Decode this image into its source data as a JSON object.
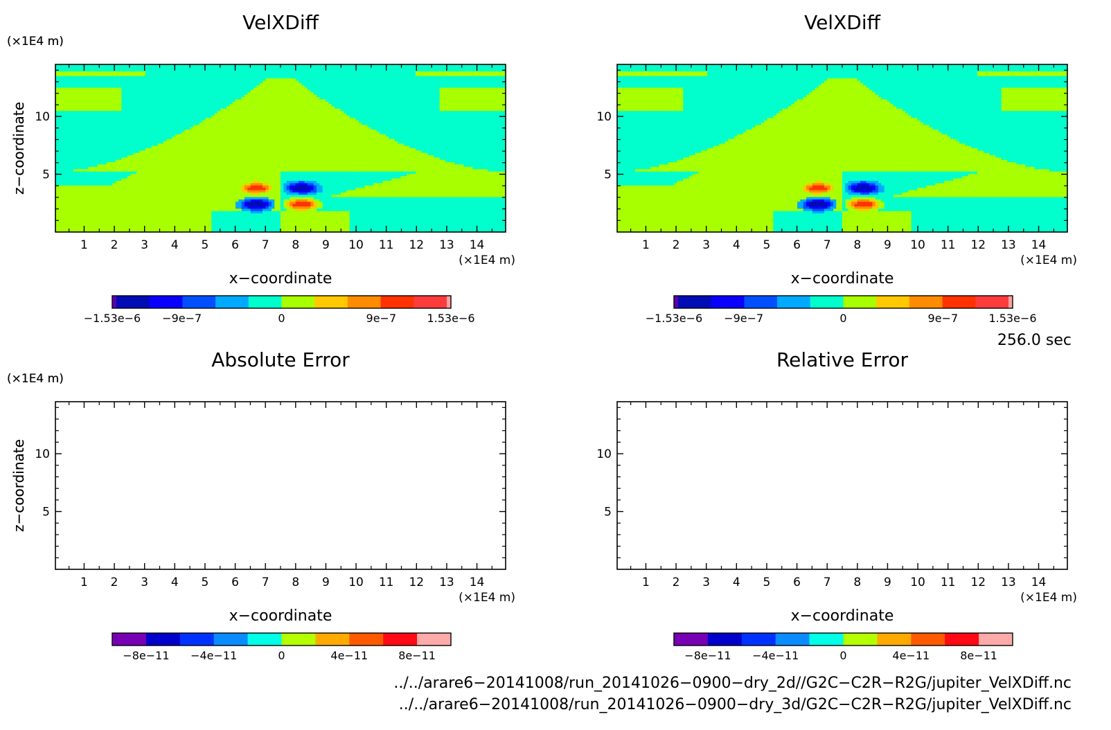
{
  "chart_data": [
    {
      "type": "heatmap",
      "title": "VelXDiff",
      "xlabel": "x−coordinate",
      "ylabel": "z−coordinate",
      "x_unit": "(×1E4 m)",
      "y_unit": "(×1E4 m)",
      "xlim": [
        0.05,
        14.95
      ],
      "ylim": [
        0,
        14.5
      ],
      "x_ticks": [
        "1",
        "2",
        "3",
        "4",
        "5",
        "6",
        "7",
        "8",
        "9",
        "10",
        "11",
        "12",
        "13",
        "14"
      ],
      "y_ticks": [
        "5",
        "10"
      ],
      "colorbar_labels": [
        "−1.53e−6",
        "−9e−7",
        "0",
        "9e−7",
        "1.53e−6"
      ],
      "colorbar_range": [
        -1.53e-06,
        1.53e-06
      ],
      "field": "velxdiff",
      "features": [
        {
          "x": 6.7,
          "z": 3.8,
          "sign": "positive"
        },
        {
          "x": 8.2,
          "z": 3.8,
          "sign": "negative"
        },
        {
          "x": 6.7,
          "z": 2.4,
          "sign": "negative"
        },
        {
          "x": 8.2,
          "z": 2.4,
          "sign": "positive"
        }
      ]
    },
    {
      "type": "heatmap",
      "title": "VelXDiff",
      "xlabel": "x−coordinate",
      "ylabel": "z−coordinate",
      "x_unit": "(×1E4 m)",
      "y_unit": "(×1E4 m)",
      "xlim": [
        0.05,
        14.95
      ],
      "ylim": [
        0,
        14.5
      ],
      "x_ticks": [
        "1",
        "2",
        "3",
        "4",
        "5",
        "6",
        "7",
        "8",
        "9",
        "10",
        "11",
        "12",
        "13",
        "14"
      ],
      "y_ticks": [
        "5",
        "10"
      ],
      "colorbar_labels": [
        "−1.53e−6",
        "−9e−7",
        "0",
        "9e−7",
        "1.53e−6"
      ],
      "colorbar_range": [
        -1.53e-06,
        1.53e-06
      ],
      "field": "velxdiff",
      "features": [
        {
          "x": 6.7,
          "z": 3.8,
          "sign": "positive"
        },
        {
          "x": 8.2,
          "z": 3.8,
          "sign": "negative"
        },
        {
          "x": 6.7,
          "z": 2.4,
          "sign": "negative"
        },
        {
          "x": 8.2,
          "z": 2.4,
          "sign": "positive"
        }
      ]
    },
    {
      "type": "heatmap",
      "title": "Absolute Error",
      "xlabel": "x−coordinate",
      "ylabel": "z−coordinate",
      "x_unit": "(×1E4 m)",
      "y_unit": "(×1E4 m)",
      "xlim": [
        0.05,
        14.95
      ],
      "ylim": [
        0,
        14.5
      ],
      "x_ticks": [
        "1",
        "2",
        "3",
        "4",
        "5",
        "6",
        "7",
        "8",
        "9",
        "10",
        "11",
        "12",
        "13",
        "14"
      ],
      "y_ticks": [
        "5",
        "10"
      ],
      "colorbar_labels": [
        "−8e−11",
        "−4e−11",
        "0",
        "4e−11",
        "8e−11"
      ],
      "colorbar_range": [
        -1e-10,
        1e-10
      ],
      "field": "empty"
    },
    {
      "type": "heatmap",
      "title": "Relative Error",
      "xlabel": "x−coordinate",
      "ylabel": "z−coordinate",
      "x_unit": "(×1E4 m)",
      "y_unit": "(×1E4 m)",
      "xlim": [
        0.05,
        14.95
      ],
      "ylim": [
        0,
        14.5
      ],
      "x_ticks": [
        "1",
        "2",
        "3",
        "4",
        "5",
        "6",
        "7",
        "8",
        "9",
        "10",
        "11",
        "12",
        "13",
        "14"
      ],
      "y_ticks": [
        "5",
        "10"
      ],
      "colorbar_labels": [
        "−8e−11",
        "−4e−11",
        "0",
        "4e−11",
        "8e−11"
      ],
      "colorbar_range": [
        -1e-10,
        1e-10
      ],
      "field": "empty"
    }
  ],
  "colorbars": {
    "velocity": [
      "#5a00b4",
      "#000cb4",
      "#0a00ff",
      "#0050ff",
      "#00aaff",
      "#00ffcc",
      "#a8ff00",
      "#ffc800",
      "#ff8c00",
      "#ff3200",
      "#ff3c3c",
      "#ffa0a0"
    ],
    "error": [
      "#7800b4",
      "#0000cc",
      "#0032ff",
      "#0a8cff",
      "#00ffe6",
      "#b4ff00",
      "#ffaa00",
      "#ff5a00",
      "#ff0a14",
      "#ffaaaa"
    ]
  },
  "time_label": "256.0 sec",
  "file_paths": [
    "../../arare6−20141008/run_20141026−0900−dry_2d//G2C−C2R−R2G/jupiter_VelXDiff.nc",
    "../../arare6−20141008/run_20141026−0900−dry_3d/G2C−C2R−R2G/jupiter_VelXDiff.nc"
  ]
}
